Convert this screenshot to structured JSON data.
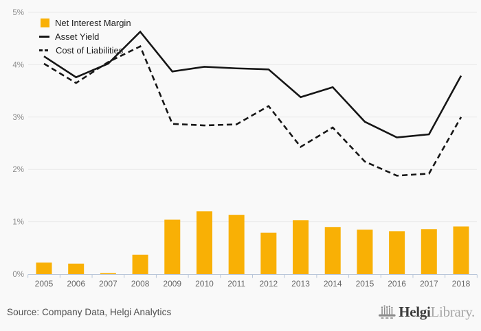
{
  "page": {
    "background": "#f9f9f9",
    "accent_orange": "#f9b005",
    "line_black": "#161616",
    "axis_color": "#b9c6d9",
    "gridline_color": "#e9e9e9"
  },
  "legend": {
    "items": [
      {
        "label": "Net Interest Margin",
        "swatch": "bar",
        "color": "#f9b005"
      },
      {
        "label": "Asset Yield",
        "swatch": "solid-line",
        "color": "#161616"
      },
      {
        "label": "Cost of Liabilities",
        "swatch": "dashed-line",
        "color": "#161616"
      }
    ]
  },
  "footer": {
    "source": "Source: Company Data, Helgi Analytics",
    "logo": {
      "brand_bold": "Helgi",
      "brand_light": "Library."
    }
  },
  "chart_data": {
    "type": "combo",
    "categories": [
      "2005",
      "2006",
      "2007",
      "2008",
      "2009",
      "2010",
      "2011",
      "2012",
      "2013",
      "2014",
      "2015",
      "2016",
      "2017",
      "2018"
    ],
    "series": [
      {
        "name": "Net Interest Margin",
        "type": "bar",
        "color": "#f9b005",
        "values": [
          0.22,
          0.2,
          0.02,
          0.37,
          1.04,
          1.2,
          1.13,
          0.79,
          1.03,
          0.9,
          0.85,
          0.82,
          0.86,
          0.91
        ]
      },
      {
        "name": "Asset Yield",
        "type": "line",
        "dash": "solid",
        "color": "#161616",
        "values": [
          4.16,
          3.76,
          4.02,
          4.63,
          3.87,
          3.96,
          3.93,
          3.91,
          3.38,
          3.57,
          2.91,
          2.61,
          2.67,
          3.79
        ]
      },
      {
        "name": "Cost of Liabilities",
        "type": "line",
        "dash": "dashed",
        "color": "#161616",
        "values": [
          4.02,
          3.65,
          4.05,
          4.35,
          2.87,
          2.84,
          2.86,
          3.21,
          2.43,
          2.8,
          2.15,
          1.88,
          1.92,
          3.0
        ]
      }
    ],
    "title": "",
    "xlabel": "",
    "ylabel": "",
    "yticks": [
      "0%",
      "1%",
      "2%",
      "3%",
      "4%",
      "5%"
    ],
    "ylim": [
      0,
      5
    ],
    "grid": "horizontal",
    "legend_position": "top-left"
  }
}
